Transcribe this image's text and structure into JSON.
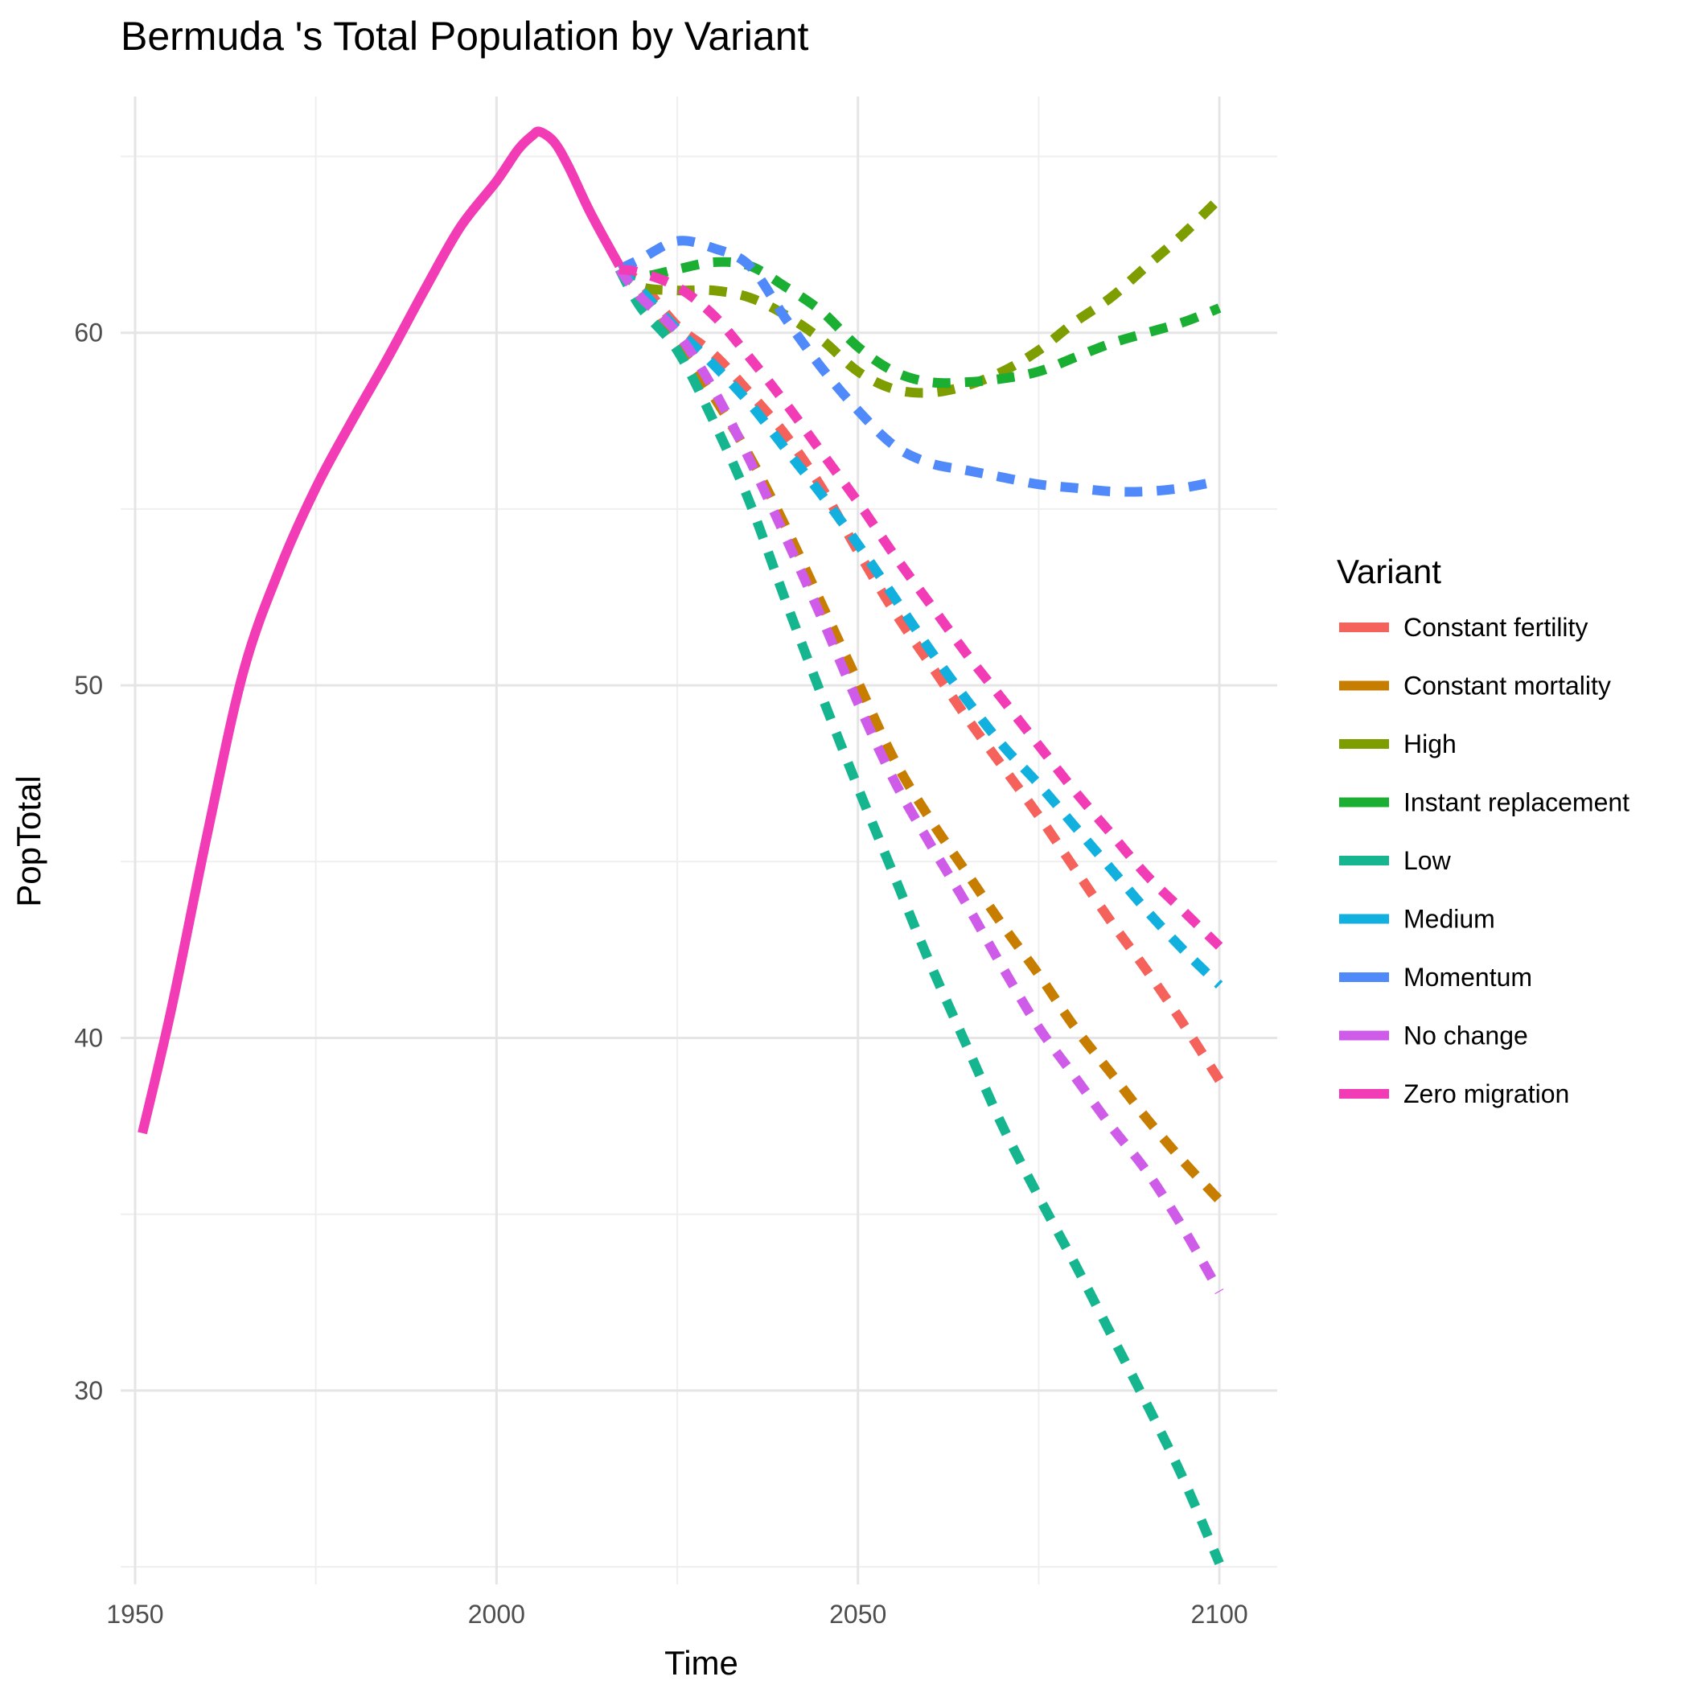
{
  "chart_data": {
    "type": "line",
    "title": "Bermuda 's Total Population by Variant",
    "xlabel": "Time",
    "ylabel": "PopTotal",
    "xlim": [
      1948,
      2108
    ],
    "ylim": [
      24.5,
      66.7
    ],
    "x_ticks": [
      1950,
      2000,
      2050,
      2100
    ],
    "y_ticks": [
      30,
      40,
      50,
      60
    ],
    "grid": true,
    "legend": {
      "title": "Variant",
      "placement": "right"
    },
    "historical": {
      "color": "#f23cb5",
      "x": [
        1951,
        1955,
        1960,
        1965,
        1970,
        1975,
        1980,
        1985,
        1990,
        1995,
        2000,
        2003,
        2005,
        2006,
        2008,
        2010,
        2013,
        2017
      ],
      "y": [
        37.3,
        40.8,
        45.8,
        50.4,
        53.3,
        55.6,
        57.5,
        59.3,
        61.2,
        63.0,
        64.3,
        65.2,
        65.6,
        65.7,
        65.4,
        64.7,
        63.4,
        61.9
      ]
    },
    "series": [
      {
        "name": "Constant fertility",
        "color": "#f4625b",
        "x": [
          2017,
          2020,
          2025,
          2030,
          2035,
          2040,
          2045,
          2050,
          2055,
          2060,
          2065,
          2070,
          2075,
          2080,
          2085,
          2090,
          2095,
          2100
        ],
        "y": [
          61.8,
          61.4,
          60.2,
          59.4,
          58.3,
          57.1,
          55.6,
          53.8,
          52.1,
          50.6,
          49.1,
          47.7,
          46.3,
          44.8,
          43.3,
          41.9,
          40.4,
          38.8
        ]
      },
      {
        "name": "Constant mortality",
        "color": "#c77d00",
        "x": [
          2017,
          2020,
          2025,
          2030,
          2035,
          2040,
          2045,
          2050,
          2055,
          2060,
          2065,
          2070,
          2075,
          2080,
          2085,
          2090,
          2095,
          2100
        ],
        "y": [
          61.8,
          61.2,
          59.7,
          58.2,
          56.5,
          54.5,
          52.3,
          50.1,
          47.9,
          46.2,
          44.7,
          43.2,
          41.8,
          40.3,
          39.0,
          37.7,
          36.5,
          35.4
        ]
      },
      {
        "name": "High",
        "color": "#7d9d00",
        "x": [
          2017,
          2020,
          2025,
          2030,
          2035,
          2040,
          2045,
          2050,
          2055,
          2060,
          2065,
          2070,
          2075,
          2080,
          2085,
          2090,
          2095,
          2100
        ],
        "y": [
          61.8,
          61.3,
          61.2,
          61.2,
          61.0,
          60.5,
          59.8,
          58.9,
          58.4,
          58.3,
          58.5,
          58.9,
          59.5,
          60.3,
          61.0,
          61.9,
          62.8,
          63.8
        ]
      },
      {
        "name": "Instant replacement",
        "color": "#1aaf32",
        "x": [
          2017,
          2020,
          2025,
          2030,
          2035,
          2040,
          2045,
          2050,
          2055,
          2060,
          2065,
          2070,
          2075,
          2080,
          2085,
          2090,
          2095,
          2100
        ],
        "y": [
          61.8,
          61.6,
          61.8,
          62.0,
          61.9,
          61.3,
          60.6,
          59.6,
          58.9,
          58.6,
          58.6,
          58.7,
          58.9,
          59.3,
          59.7,
          60.0,
          60.3,
          60.7
        ]
      },
      {
        "name": "Low",
        "color": "#15b68f",
        "x": [
          2017,
          2020,
          2025,
          2030,
          2035,
          2040,
          2045,
          2050,
          2055,
          2060,
          2065,
          2070,
          2075,
          2080,
          2085,
          2090,
          2095,
          2100
        ],
        "y": [
          61.8,
          60.7,
          59.5,
          57.5,
          55.2,
          52.4,
          49.7,
          47.1,
          44.6,
          42.1,
          39.8,
          37.5,
          35.5,
          33.6,
          31.6,
          29.6,
          27.5,
          25.1
        ]
      },
      {
        "name": "Medium",
        "color": "#12b0de",
        "x": [
          2017,
          2020,
          2025,
          2030,
          2035,
          2040,
          2045,
          2050,
          2055,
          2060,
          2065,
          2070,
          2075,
          2080,
          2085,
          2090,
          2095,
          2100
        ],
        "y": [
          61.8,
          61.2,
          60.1,
          59.1,
          58.0,
          56.7,
          55.4,
          54.0,
          52.5,
          51.0,
          49.6,
          48.3,
          47.2,
          46.0,
          44.8,
          43.6,
          42.5,
          41.5
        ]
      },
      {
        "name": "Momentum",
        "color": "#5089f9",
        "x": [
          2017,
          2020,
          2025,
          2030,
          2035,
          2040,
          2045,
          2050,
          2055,
          2060,
          2065,
          2070,
          2075,
          2080,
          2085,
          2090,
          2095,
          2100
        ],
        "y": [
          61.8,
          62.1,
          62.6,
          62.4,
          61.9,
          60.4,
          59.0,
          57.8,
          56.8,
          56.3,
          56.1,
          55.9,
          55.7,
          55.6,
          55.5,
          55.5,
          55.6,
          55.8
        ]
      },
      {
        "name": "No change",
        "color": "#cf5ce8",
        "x": [
          2017,
          2020,
          2025,
          2030,
          2035,
          2040,
          2045,
          2050,
          2055,
          2060,
          2065,
          2070,
          2075,
          2080,
          2085,
          2090,
          2095,
          2100
        ],
        "y": [
          61.8,
          61.0,
          60.0,
          58.4,
          56.4,
          54.2,
          51.9,
          49.5,
          47.3,
          45.5,
          43.8,
          42.0,
          40.3,
          38.9,
          37.5,
          36.2,
          34.6,
          32.8
        ]
      },
      {
        "name": "Zero migration",
        "color": "#f23cb5",
        "x": [
          2017,
          2020,
          2025,
          2030,
          2035,
          2040,
          2045,
          2050,
          2055,
          2060,
          2065,
          2070,
          2075,
          2080,
          2085,
          2090,
          2095,
          2100
        ],
        "y": [
          61.8,
          61.7,
          61.3,
          60.5,
          59.3,
          58.0,
          56.6,
          55.2,
          53.7,
          52.3,
          50.9,
          49.6,
          48.3,
          47.0,
          45.8,
          44.6,
          43.6,
          42.6
        ]
      }
    ]
  }
}
